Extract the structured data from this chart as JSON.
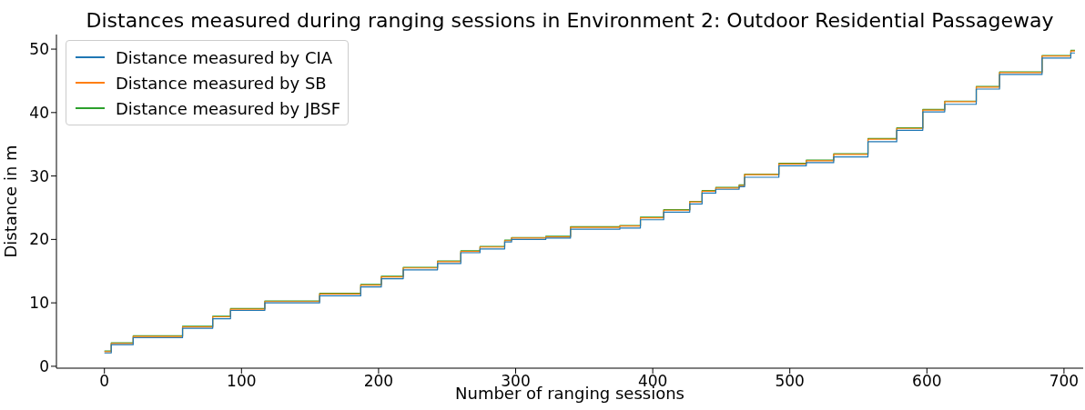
{
  "chart_data": {
    "type": "line",
    "title": "Distances measured during ranging sessions in Environment 2: Outdoor Residential Passageway",
    "xlabel": "Number of ranging sessions",
    "ylabel": "Distance in m",
    "xlim": [
      -35,
      714
    ],
    "ylim": [
      -0.3,
      52.3
    ],
    "xticks": [
      0,
      100,
      200,
      300,
      400,
      500,
      600,
      700
    ],
    "yticks": [
      0,
      10,
      20,
      30,
      40,
      50
    ],
    "grid": false,
    "legend": "top left",
    "marker": "none",
    "line_style": "solid",
    "x": [
      0,
      5,
      5,
      21,
      21,
      57,
      57,
      79,
      79,
      92,
      92,
      117,
      117,
      157,
      157,
      187,
      187,
      202,
      202,
      218,
      218,
      243,
      243,
      260,
      260,
      274,
      274,
      292,
      292,
      297,
      297,
      322,
      322,
      340,
      340,
      376,
      376,
      391,
      391,
      408,
      408,
      427,
      427,
      436,
      436,
      446,
      446,
      463,
      463,
      467,
      467,
      492,
      492,
      512,
      512,
      532,
      532,
      557,
      557,
      578,
      578,
      597,
      597,
      613,
      613,
      636,
      636,
      653,
      653,
      684,
      684,
      705,
      705,
      708
    ],
    "series": [
      {
        "name": "Distance measured by CIA",
        "color": "#1f77b4",
        "values": [
          2.1,
          2.1,
          3.4,
          3.4,
          4.5,
          4.5,
          6.0,
          6.0,
          7.5,
          7.5,
          8.8,
          8.8,
          10.0,
          10.0,
          11.1,
          11.1,
          12.5,
          12.5,
          13.8,
          13.8,
          15.2,
          15.2,
          16.2,
          16.2,
          17.9,
          17.9,
          18.5,
          18.5,
          19.6,
          19.6,
          20.0,
          20.0,
          20.2,
          20.2,
          21.6,
          21.6,
          21.8,
          21.8,
          23.1,
          23.1,
          24.3,
          24.3,
          25.6,
          25.6,
          27.3,
          27.3,
          27.9,
          27.9,
          28.3,
          28.3,
          29.8,
          29.8,
          31.6,
          31.6,
          32.1,
          32.1,
          33.0,
          33.0,
          35.4,
          35.4,
          37.2,
          37.2,
          40.1,
          40.1,
          41.3,
          41.3,
          43.7,
          43.7,
          46.0,
          46.0,
          48.6,
          48.6,
          49.4,
          49.4
        ]
      },
      {
        "name": "Distance measured by SB",
        "color": "#ff7f0e",
        "values": [
          2.3,
          2.3,
          3.6,
          3.6,
          4.7,
          4.7,
          6.2,
          6.2,
          7.8,
          7.8,
          9.0,
          9.0,
          10.2,
          10.2,
          11.4,
          11.4,
          12.8,
          12.8,
          14.1,
          14.1,
          15.5,
          15.5,
          16.5,
          16.5,
          18.1,
          18.1,
          18.8,
          18.8,
          19.8,
          19.8,
          20.2,
          20.2,
          20.4,
          20.4,
          21.9,
          21.9,
          22.1,
          22.1,
          23.4,
          23.4,
          24.6,
          24.6,
          25.9,
          25.9,
          27.6,
          27.6,
          28.1,
          28.1,
          28.5,
          28.5,
          30.2,
          30.2,
          31.9,
          31.9,
          32.4,
          32.4,
          33.4,
          33.4,
          35.8,
          35.8,
          37.5,
          37.5,
          40.4,
          40.4,
          41.7,
          41.7,
          44.0,
          44.0,
          46.3,
          46.3,
          48.9,
          48.9,
          49.7,
          49.7
        ]
      },
      {
        "name": "Distance measured by JBSF",
        "color": "#2ca02c",
        "values": [
          2.4,
          2.4,
          3.7,
          3.7,
          4.8,
          4.8,
          6.3,
          6.3,
          7.9,
          7.9,
          9.1,
          9.1,
          10.3,
          10.3,
          11.5,
          11.5,
          12.9,
          12.9,
          14.2,
          14.2,
          15.6,
          15.6,
          16.6,
          16.6,
          18.2,
          18.2,
          18.9,
          18.9,
          19.9,
          19.9,
          20.3,
          20.3,
          20.5,
          20.5,
          22.0,
          22.0,
          22.2,
          22.2,
          23.5,
          23.5,
          24.7,
          24.7,
          26.0,
          26.0,
          27.7,
          27.7,
          28.2,
          28.2,
          28.6,
          28.6,
          30.3,
          30.3,
          32.0,
          32.0,
          32.5,
          32.5,
          33.5,
          33.5,
          35.9,
          35.9,
          37.6,
          37.6,
          40.5,
          40.5,
          41.8,
          41.8,
          44.1,
          44.1,
          46.4,
          46.4,
          49.0,
          49.0,
          49.8,
          49.8
        ]
      }
    ]
  }
}
